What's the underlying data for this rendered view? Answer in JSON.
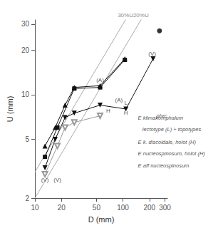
{
  "chart_data": {
    "type": "line",
    "xlabel": "D (mm)",
    "ylabel": "U (mm)",
    "log": true,
    "grid": false,
    "xlim": [
      10,
      320
    ],
    "ylim": [
      2,
      32
    ],
    "xticks": [
      10,
      20,
      50,
      100,
      200,
      300
    ],
    "yticks": [
      2,
      5,
      10,
      20,
      30
    ],
    "series": [
      {
        "type": "line",
        "color": "#111111",
        "marker": "triangle-up",
        "x": [
          13,
          17,
          22,
          28,
          55,
          105
        ],
        "values": [
          4.5,
          6.0,
          8.5,
          11.2,
          11.5,
          17.5
        ]
      },
      {
        "type": "line",
        "color": "#111111",
        "marker": "square",
        "x": [
          13,
          18,
          28,
          55,
          105
        ],
        "values": [
          3.8,
          6.0,
          11.0,
          11.2,
          17.2
        ]
      },
      {
        "type": "line",
        "color": "#111111",
        "marker": "triangle-down",
        "x": [
          13,
          17,
          22,
          28,
          55,
          108,
          220
        ],
        "values": [
          3.2,
          5.0,
          7.0,
          7.5,
          8.5,
          8.0,
          17.5
        ]
      },
      {
        "type": "line",
        "color": "#999999",
        "marker": "triangle-down-open",
        "x": [
          13,
          18,
          22,
          28,
          55
        ],
        "values": [
          2.9,
          4.5,
          6.0,
          6.5,
          7.2
        ]
      },
      {
        "type": "scatter",
        "color": "#000000",
        "marker": "circle",
        "x": [
          260
        ],
        "values": [
          27
        ]
      }
    ],
    "reference_lines": [
      {
        "slope": 0.3,
        "label": "30%U",
        "color": "#aaaaaa"
      },
      {
        "slope": 0.2,
        "label": "20%U",
        "color": "#aaaaaa"
      }
    ],
    "annotations": [
      {
        "text": "(A)",
        "x": 55,
        "y": 12.5
      },
      {
        "text": "(A)",
        "x": 90,
        "y": 9.2
      },
      {
        "text": "(V)",
        "x": 13,
        "y": 2.65
      },
      {
        "text": "(V)",
        "x": 18,
        "y": 2.65
      },
      {
        "text": "(V)",
        "x": 215,
        "y": 19.0
      },
      {
        "text": "L",
        "x": 108,
        "y": 8.8
      },
      {
        "text": "H",
        "x": 68,
        "y": 7.8
      },
      {
        "text": "H",
        "x": 108,
        "y": 7.5
      }
    ],
    "notes": [
      {
        "text": "phrc",
        "x": 240,
        "y": 7.2
      },
      {
        "text": "E klimakomphalum",
        "x": 148,
        "y": 7.0
      },
      {
        "text": "   lectotype (L) + topotypes",
        "x": 148,
        "y": 5.8
      },
      {
        "text": "E k. discoidale, holot (H)",
        "x": 148,
        "y": 4.8
      },
      {
        "text": "E nucleospinosum, holot (H)",
        "x": 148,
        "y": 4.0
      },
      {
        "text": "E aff nucleospinosum",
        "x": 148,
        "y": 3.3
      }
    ]
  }
}
